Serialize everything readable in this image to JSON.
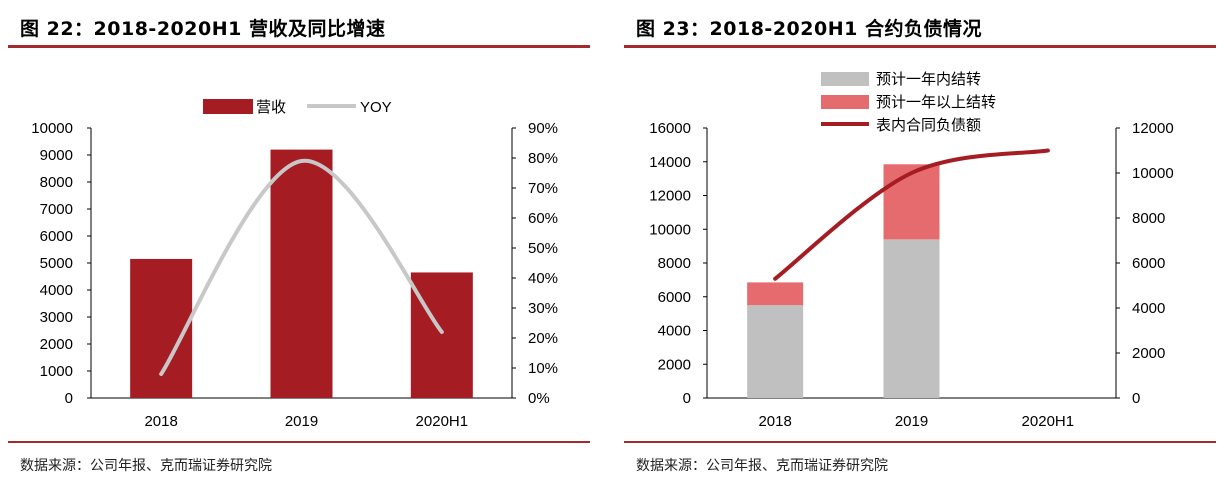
{
  "left": {
    "title": "图 22：2018-2020H1 营收及同比增速",
    "source": "数据来源：公司年报、克而瑞证券研究院",
    "legend": [
      "营收",
      "YOY"
    ]
  },
  "right": {
    "title": "图 23：2018-2020H1 合约负债情况",
    "source": "数据来源：公司年报、克而瑞证券研究院",
    "legend": [
      "预计一年内结转",
      "预计一年以上结转",
      "表内合同负债额"
    ]
  },
  "colors": {
    "bar": "#a51c22",
    "yoy": "#c8c8c8",
    "gray": "#c0c0c0",
    "pink": "#e56b6f",
    "line": "#a51c22",
    "rule": "#a32a2e"
  },
  "chart_data": [
    {
      "type": "bar",
      "title": "2018-2020H1 营收及同比增速",
      "categories": [
        "2018",
        "2019",
        "2020H1"
      ],
      "series": [
        {
          "name": "营收",
          "axis": "left",
          "values": [
            5150,
            9200,
            4650
          ]
        },
        {
          "name": "YOY",
          "axis": "right",
          "type": "line",
          "values": [
            0.08,
            0.79,
            0.22
          ]
        }
      ],
      "ylim": [
        0,
        10000
      ],
      "yticks": [
        0,
        1000,
        2000,
        3000,
        4000,
        5000,
        6000,
        7000,
        8000,
        9000,
        10000
      ],
      "y2lim": [
        0,
        0.9
      ],
      "y2ticks": [
        "0%",
        "10%",
        "20%",
        "30%",
        "40%",
        "50%",
        "60%",
        "70%",
        "80%",
        "90%"
      ],
      "legend_position": "top"
    },
    {
      "type": "bar",
      "stacked": true,
      "title": "2018-2020H1 合约负债情况",
      "categories": [
        "2018",
        "2019",
        "2020H1"
      ],
      "series": [
        {
          "name": "预计一年内结转",
          "axis": "left",
          "values": [
            5500,
            9400,
            null
          ]
        },
        {
          "name": "预计一年以上结转",
          "axis": "left",
          "values": [
            1350,
            4450,
            null
          ]
        },
        {
          "name": "表内合同负债额",
          "axis": "right",
          "type": "line",
          "values": [
            5300,
            10000,
            11000
          ]
        }
      ],
      "ylim": [
        0,
        16000
      ],
      "yticks": [
        0,
        2000,
        4000,
        6000,
        8000,
        10000,
        12000,
        14000,
        16000
      ],
      "y2lim": [
        0,
        12000
      ],
      "y2ticks": [
        0,
        2000,
        4000,
        6000,
        8000,
        10000,
        12000
      ],
      "legend_position": "top"
    }
  ]
}
